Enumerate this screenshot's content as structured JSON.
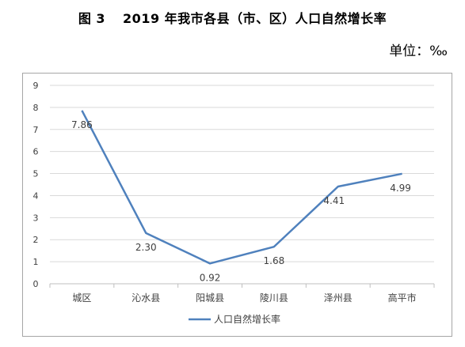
{
  "title": {
    "figure_label": "图 3",
    "text": "2019 年我市各县（市、区）人口自然增长率"
  },
  "unit_label": "单位：‰",
  "chart_data": {
    "type": "line",
    "categories": [
      "城区",
      "沁水县",
      "阳城县",
      "陵川县",
      "泽州县",
      "高平市"
    ],
    "series": [
      {
        "name": "人口自然增长率",
        "values": [
          7.86,
          2.3,
          0.92,
          1.68,
          4.41,
          4.99
        ],
        "labels": [
          "7.86",
          "2.30",
          "0.92",
          "1.68",
          "4.41",
          "4.99"
        ]
      }
    ],
    "ylim": [
      0,
      9
    ],
    "yticks": [
      "0",
      "1",
      "2",
      "3",
      "4",
      "5",
      "6",
      "7",
      "8",
      "9"
    ],
    "grid": true,
    "legend": "bottom",
    "colors": {
      "line": "#4f81bd",
      "grid": "#d9d9d9",
      "axis": "#bfbfbf"
    }
  }
}
